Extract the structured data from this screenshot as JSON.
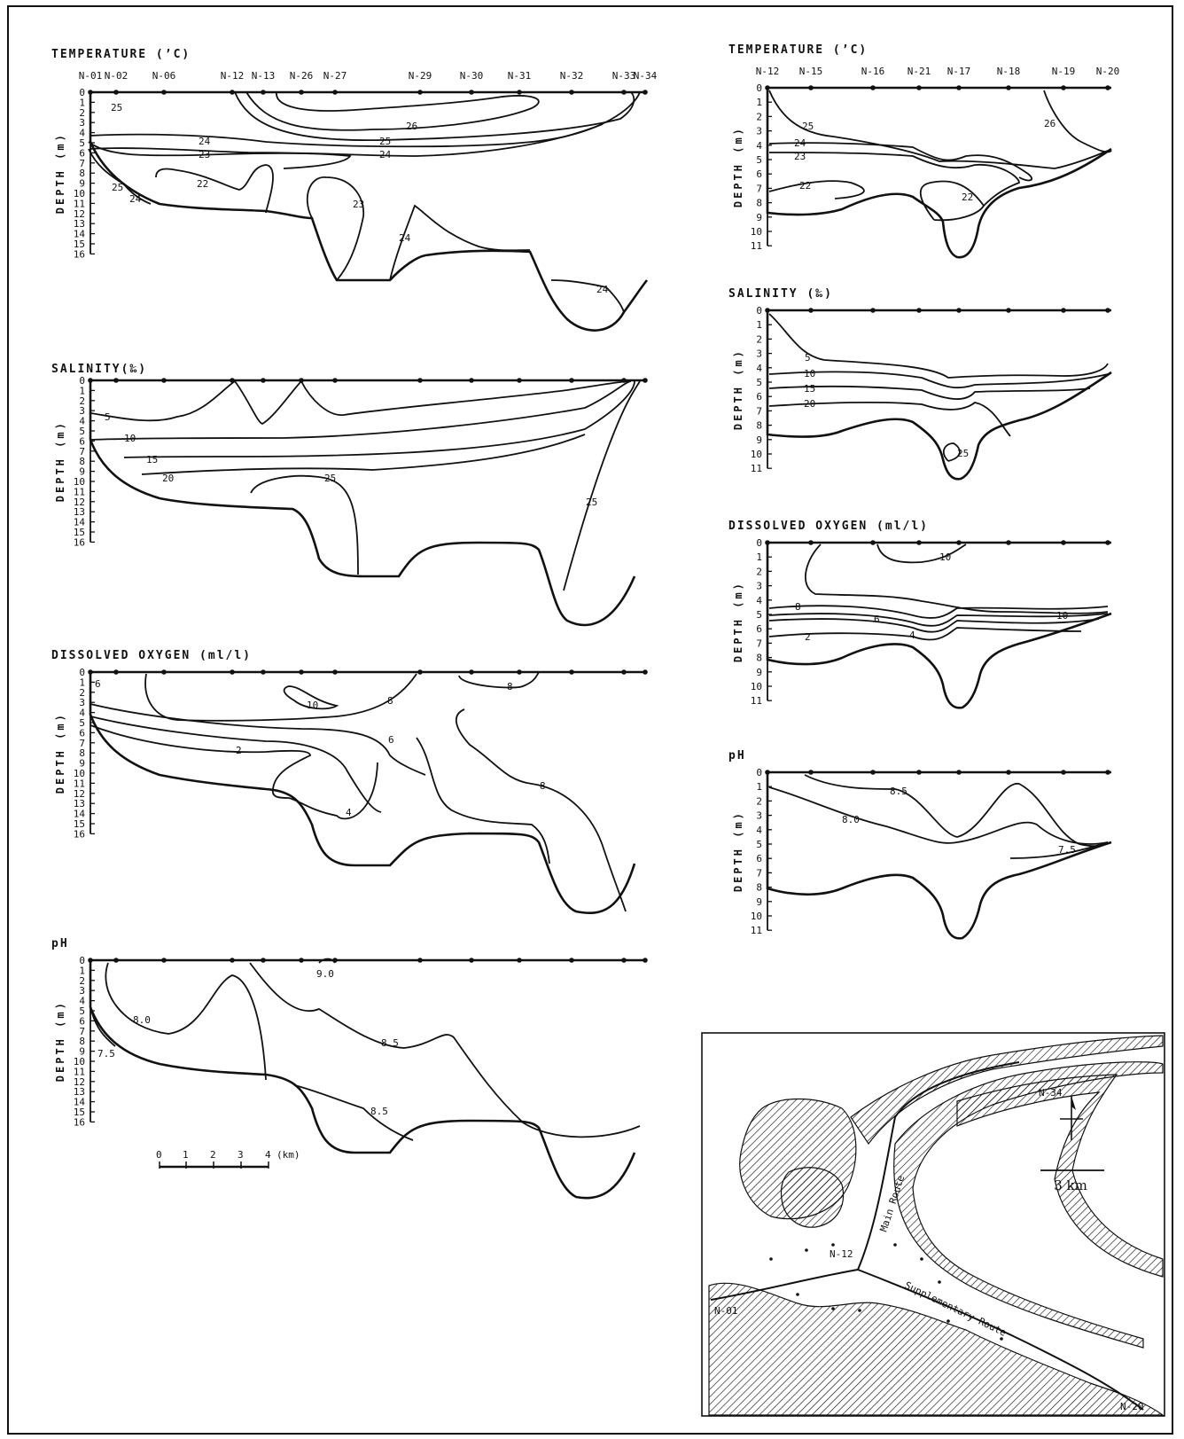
{
  "left": {
    "stations": [
      "N-01",
      "N-02",
      "N-06",
      "N-12",
      "N-13",
      "N-26",
      "N-27",
      "N-29",
      "N-30",
      "N-31",
      "N-32",
      "N-33",
      "N-34"
    ],
    "panels": [
      {
        "title": "TEMPERATURE (’C)",
        "ylabel": "DEPTH (m)",
        "depths": [
          "0",
          "1",
          "2",
          "3",
          "4",
          "5",
          "6",
          "7",
          "8",
          "9",
          "10",
          "11",
          "12",
          "13",
          "14",
          "15",
          "16"
        ],
        "contours": [
          "25",
          "26",
          "24",
          "25",
          "23",
          "24",
          "25",
          "24",
          "22",
          "23",
          "24",
          "24"
        ]
      },
      {
        "title": "SALINITY(‰)",
        "ylabel": "DEPTH (m)",
        "depths": [
          "0",
          "1",
          "2",
          "3",
          "4",
          "5",
          "6",
          "7",
          "8",
          "9",
          "10",
          "11",
          "12",
          "13",
          "14",
          "15",
          "16"
        ],
        "contours": [
          "5",
          "10",
          "15",
          "20",
          "25",
          "25"
        ]
      },
      {
        "title": "DISSOLVED OXYGEN (ml/l)",
        "ylabel": "DEPTH (m)",
        "depths": [
          "0",
          "1",
          "2",
          "3",
          "4",
          "5",
          "6",
          "7",
          "8",
          "9",
          "10",
          "11",
          "12",
          "13",
          "14",
          "15",
          "16"
        ],
        "contours": [
          "6",
          "10",
          "8",
          "8",
          "6",
          "2",
          "4",
          "8"
        ]
      },
      {
        "title": "pH",
        "ylabel": "DEPTH (m)",
        "depths": [
          "0",
          "1",
          "2",
          "3",
          "4",
          "5",
          "6",
          "7",
          "8",
          "9",
          "10",
          "11",
          "12",
          "13",
          "14",
          "15",
          "16"
        ],
        "contours": [
          "9.0",
          "8.0",
          "8.5",
          "7.5",
          "8.5"
        ]
      }
    ],
    "scale": {
      "ticks": [
        "0",
        "1",
        "2",
        "3",
        "4"
      ],
      "unit": "(km)"
    }
  },
  "right": {
    "stations": [
      "N-12",
      "N-15",
      "N-16",
      "N-21",
      "N-17",
      "N-18",
      "N-19",
      "N-20"
    ],
    "panels": [
      {
        "title": "TEMPERATURE (’C)",
        "ylabel": "DEPTH (m)",
        "depths": [
          "0",
          "1",
          "2",
          "3",
          "4",
          "5",
          "6",
          "7",
          "8",
          "9",
          "10",
          "11"
        ],
        "contours": [
          "25",
          "24",
          "23",
          "22",
          "22",
          "26"
        ]
      },
      {
        "title": "SALINITY (‰)",
        "ylabel": "DEPTH (m)",
        "depths": [
          "0",
          "1",
          "2",
          "3",
          "4",
          "5",
          "6",
          "7",
          "8",
          "9",
          "10",
          "11"
        ],
        "contours": [
          "5",
          "10",
          "15",
          "20",
          "25"
        ]
      },
      {
        "title": "DISSOLVED OXYGEN (ml/l)",
        "ylabel": "DEPTH (m)",
        "depths": [
          "0",
          "1",
          "2",
          "3",
          "4",
          "5",
          "6",
          "7",
          "8",
          "9",
          "10",
          "11"
        ],
        "contours": [
          "10",
          "8",
          "6",
          "4",
          "2",
          "10"
        ]
      },
      {
        "title": "pH",
        "ylabel": "DEPTH (m)",
        "depths": [
          "0",
          "1",
          "2",
          "3",
          "4",
          "5",
          "6",
          "7",
          "8",
          "9",
          "10",
          "11"
        ],
        "contours": [
          "8.5",
          "8.0",
          "7.5"
        ]
      }
    ]
  },
  "map": {
    "labels": {
      "n34": "N-34",
      "n12": "N-12",
      "n01": "N-01",
      "n20": "N-20",
      "main": "Main Route",
      "supp": "Supplementary Route",
      "scale": "3 km"
    }
  }
}
